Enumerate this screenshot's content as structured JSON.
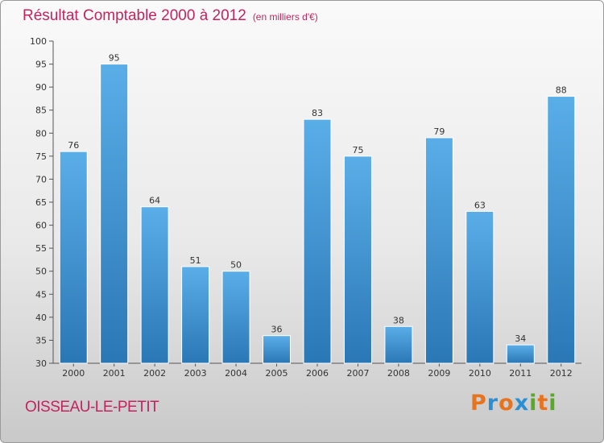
{
  "title": "Résultat Comptable 2000 à 2012",
  "subtitle": "(en milliers d'€)",
  "location": "OISSEAU-LE-PETIT",
  "logo": {
    "letters": [
      "P",
      "r",
      "o",
      "x",
      "i",
      "t",
      "i"
    ],
    "colors": [
      "#e8731f",
      "#2c8fd1",
      "#e8731f",
      "#2c8fd1",
      "#5aa829",
      "#e8731f",
      "#5aa829"
    ]
  },
  "colors": {
    "title": "#c4245e",
    "bar_top": "#5aaee8",
    "bar_bottom": "#2a77b5"
  },
  "chart_data": {
    "type": "bar",
    "categories": [
      "2000",
      "2001",
      "2002",
      "2003",
      "2004",
      "2005",
      "2006",
      "2007",
      "2008",
      "2009",
      "2010",
      "2011",
      "2012"
    ],
    "values": [
      76,
      95,
      64,
      51,
      50,
      36,
      83,
      75,
      38,
      79,
      63,
      34,
      88
    ],
    "title": "Résultat Comptable 2000 à 2012",
    "ylabel": "",
    "xlabel": "",
    "ylim": [
      30,
      100
    ],
    "yticks": [
      30,
      35,
      40,
      45,
      50,
      55,
      60,
      65,
      70,
      75,
      80,
      85,
      90,
      95,
      100
    ],
    "grid": false
  }
}
